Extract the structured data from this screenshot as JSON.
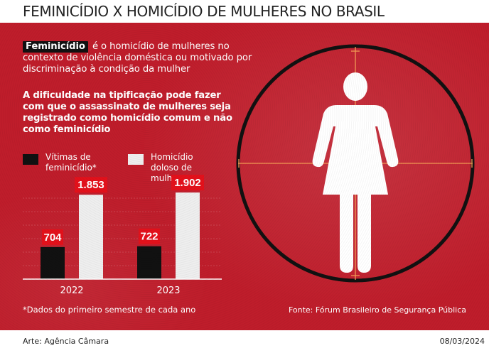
{
  "header": {
    "title": "FEMINICÍDIO X HOMICÍDIO DE MULHERES NO BRASIL"
  },
  "definition": {
    "term": "Feminicídio",
    "text": "é o homicídio de mulheres no contexto de violência doméstica ou motivado por discriminação à condição da mulher"
  },
  "lead": "A dificuldade na tipificação pode fazer com que o assassinato de mulheres seja registrado como homicídio comum e não como feminicídio",
  "colors": {
    "panel": "#bf1d2b",
    "feminicidio": "#111111",
    "homicidio": "#eeeeee",
    "label_box": "#e3111b",
    "reticle": "#f29a55"
  },
  "icons": [
    "woman-icon",
    "crosshair-icon"
  ],
  "chart_data": {
    "type": "bar",
    "categories": [
      "2022",
      "2023"
    ],
    "series": [
      {
        "name": "Vítimas de feminicídio*",
        "values": [
          704,
          722
        ],
        "labels": [
          "704",
          "722"
        ],
        "color": "#111111"
      },
      {
        "name": "Homicídio doloso de mulheres*",
        "values": [
          1853,
          1902
        ],
        "labels": [
          "1.853",
          "1.902"
        ],
        "color": "#eeeeee"
      }
    ],
    "legend": {
      "position": "top-left"
    },
    "grid": false,
    "ylim": [
      0,
      1950
    ]
  },
  "footnote": "*Dados do primeiro semestre de cada ano",
  "source": "Fonte: Fórum Brasileiro de Segurança Pública",
  "credit": "Arte: Agência Câmara",
  "date": "08/03/2024"
}
